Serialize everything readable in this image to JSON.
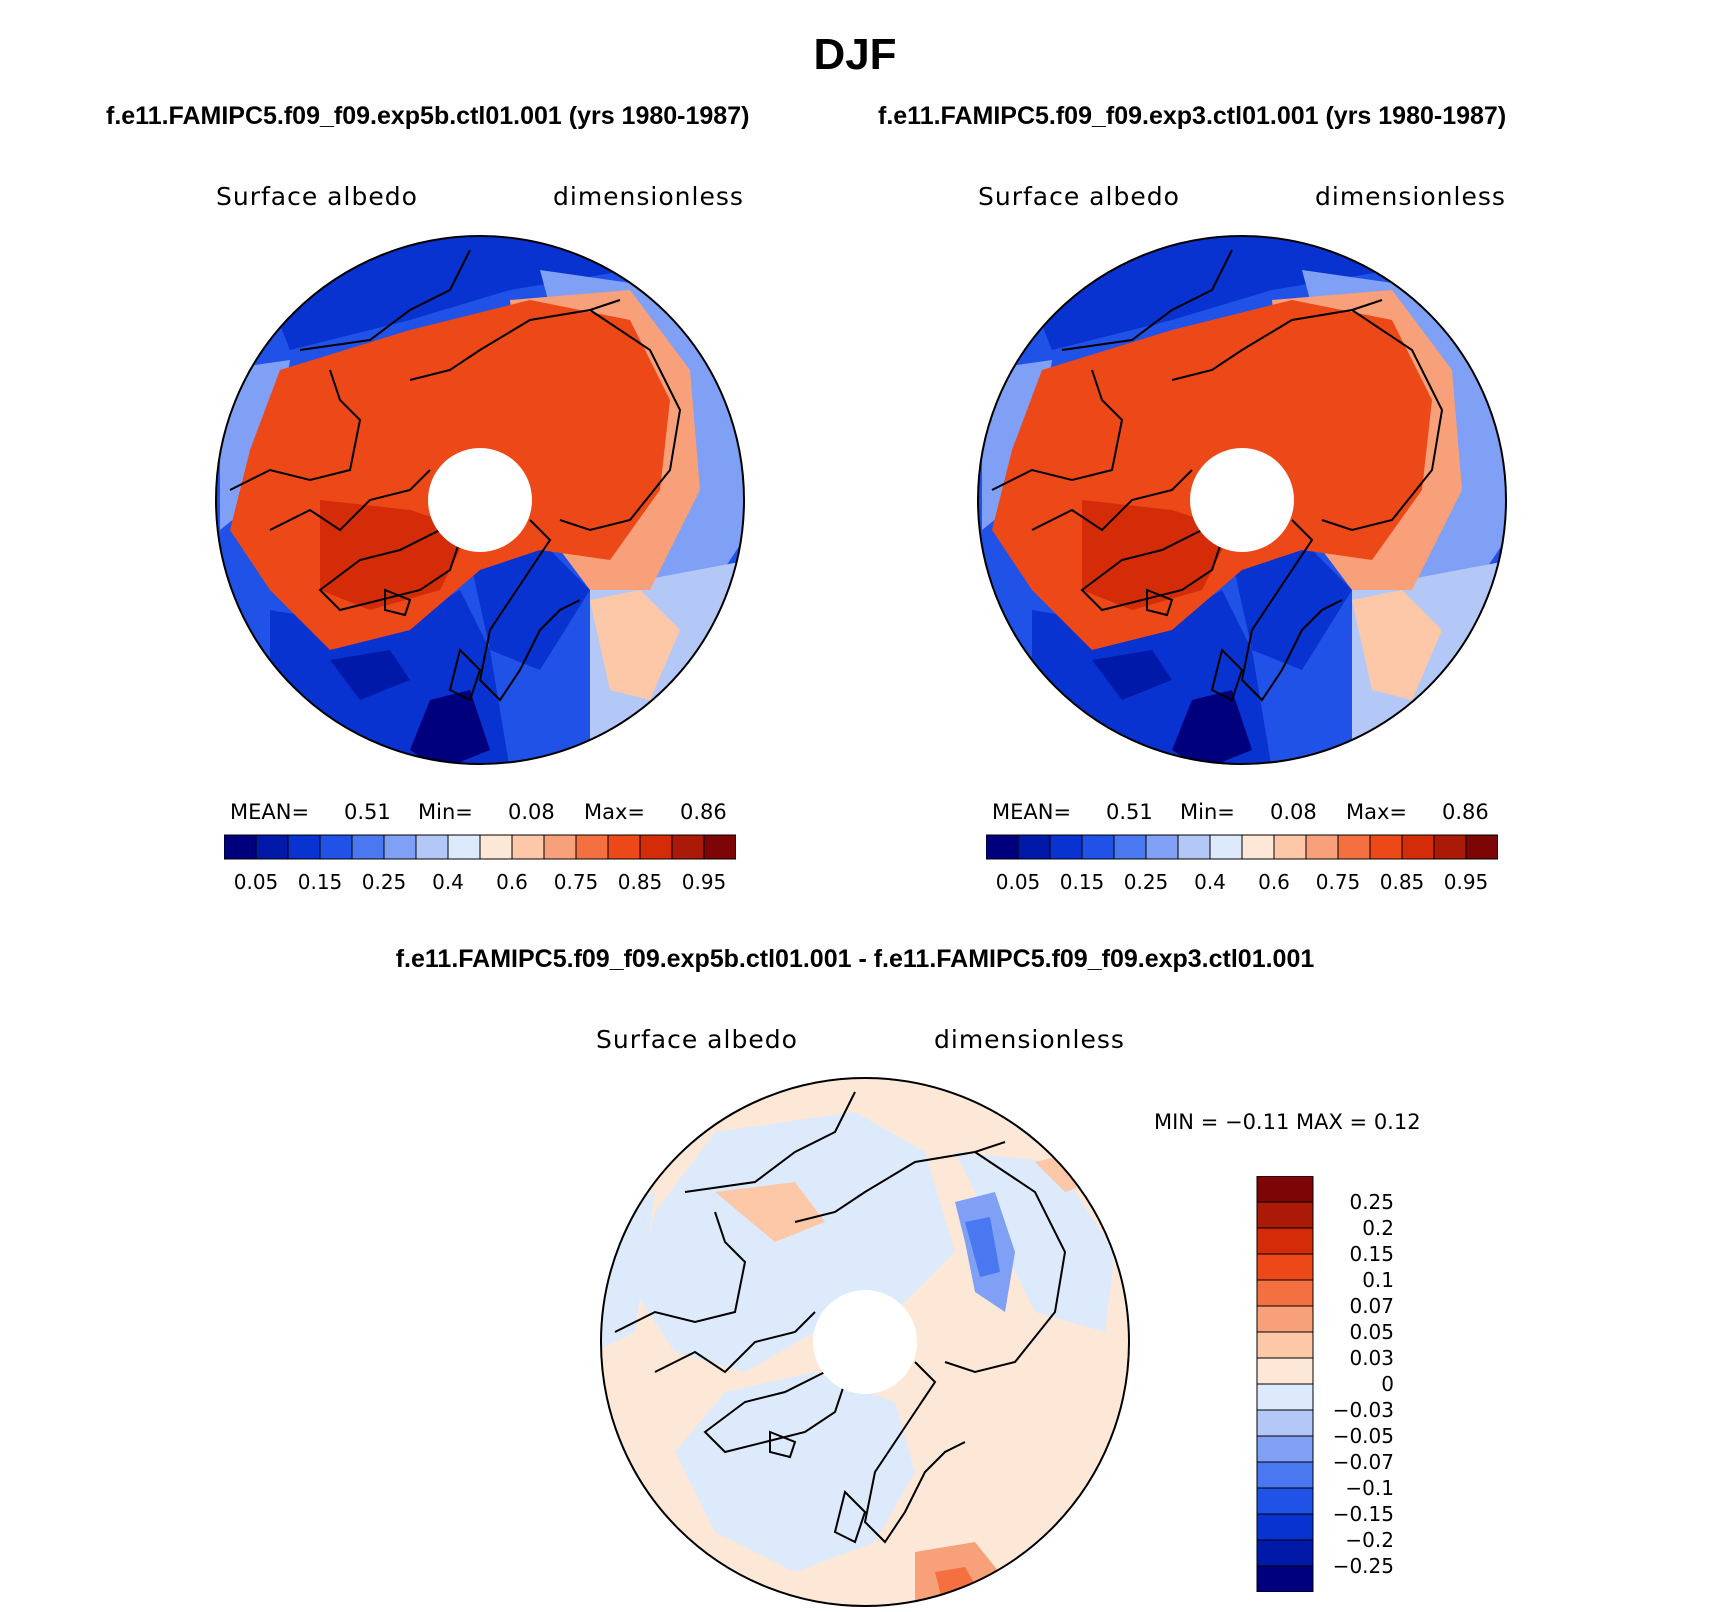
{
  "title": "DJF",
  "panels": [
    {
      "case": "f.e11.FAMIPC5.f09_f09.exp5b.ctl01.001 (yrs 1980-1987)",
      "variable": "Surface albedo",
      "units": "dimensionless",
      "stats": {
        "mean_label": "MEAN=",
        "mean": "0.51",
        "min_label": "Min=",
        "min": "0.08",
        "max_label": "Max=",
        "max": "0.86"
      }
    },
    {
      "case": "f.e11.FAMIPC5.f09_f09.exp3.ctl01.001 (yrs 1980-1987)",
      "variable": "Surface albedo",
      "units": "dimensionless",
      "stats": {
        "mean_label": "MEAN=",
        "mean": "0.51",
        "min_label": "Min=",
        "min": "0.08",
        "max_label": "Max=",
        "max": "0.86"
      }
    }
  ],
  "abs_colorbar": {
    "colors": [
      "#00007f",
      "#0019a8",
      "#0833d0",
      "#2052e8",
      "#4a78f0",
      "#7fa0f4",
      "#b4c8f8",
      "#dceafc",
      "#fde8d8",
      "#fcc8a8",
      "#f8a07a",
      "#f47040",
      "#ec4818",
      "#d42c08",
      "#aa1a06",
      "#7e0505"
    ],
    "tick_labels": [
      "0.05",
      "0.15",
      "0.25",
      "0.4",
      "0.6",
      "0.75",
      "0.85",
      "0.95"
    ]
  },
  "diff": {
    "title": "f.e11.FAMIPC5.f09_f09.exp5b.ctl01.001 - f.e11.FAMIPC5.f09_f09.exp3.ctl01.001",
    "variable": "Surface albedo",
    "units": "dimensionless",
    "stats_text": "MIN =   −0.11  MAX =    0.12",
    "colors_top_to_bottom": [
      "#7e0505",
      "#aa1a06",
      "#d42c08",
      "#ec4818",
      "#f47040",
      "#f8a07a",
      "#fcc8a8",
      "#fde8d8",
      "#dceafc",
      "#b4c8f8",
      "#7fa0f4",
      "#4a78f0",
      "#2052e8",
      "#0833d0",
      "#0019a8",
      "#00007f"
    ],
    "tick_labels_top_to_bottom": [
      "0.25",
      "0.2",
      "0.15",
      "0.1",
      "0.07",
      "0.05",
      "0.03",
      "0",
      "−0.03",
      "−0.05",
      "−0.07",
      "−0.1",
      "−0.15",
      "−0.2",
      "−0.25"
    ]
  }
}
